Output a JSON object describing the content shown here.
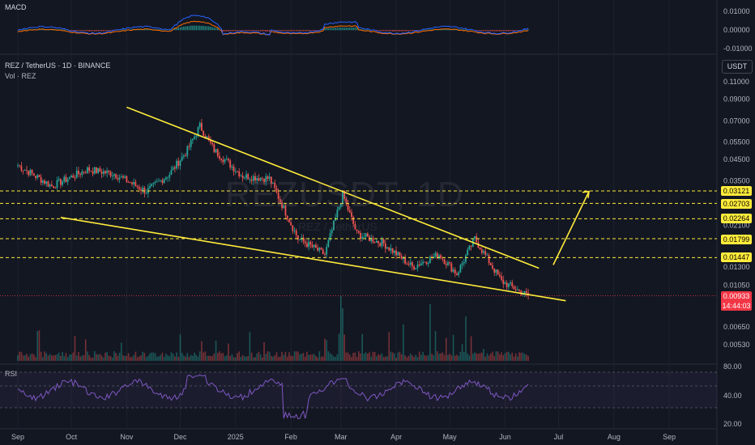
{
  "header": {
    "symbol": "REZ / TetherUS · 1D · BINANCE",
    "vol_label": "Vol · REZ",
    "currency": "USDT"
  },
  "indicators": {
    "macd_label": "MACD",
    "rsi_label": "RSI",
    "macd_axis": [
      "0.01000",
      "0.00000",
      "-0.01000"
    ],
    "rsi_axis": [
      "80.00",
      "40.00",
      "20.00"
    ]
  },
  "watermark": {
    "symbol": "REZUSDT, 1D",
    "name": "REZ / TetherUS"
  },
  "price_axis": [
    "0.11000",
    "0.09000",
    "0.07000",
    "0.05500",
    "0.04500",
    "0.03500",
    "0.02100",
    "0.01300",
    "0.01050",
    "0.00650",
    "0.00530"
  ],
  "level_tags": [
    "0.03121",
    "0.02703",
    "0.02264",
    "0.01799",
    "0.01447"
  ],
  "current_price": {
    "value": "0.00933",
    "countdown": "14:44:03"
  },
  "x_axis": [
    "Sep",
    "Oct",
    "Nov",
    "Dec",
    "2025",
    "Feb",
    "Mar",
    "Apr",
    "May",
    "Jun",
    "Jul",
    "Aug",
    "Sep"
  ],
  "colors": {
    "background": "#131722",
    "up": "#26a69a",
    "down": "#ef5350",
    "trendline": "#ffeb3b",
    "macd": "#2962ff",
    "signal": "#ff6d00",
    "rsi": "#7e57c2"
  },
  "chart_data": {
    "type": "candlestick",
    "title": "REZ / TetherUS · 1D · BINANCE",
    "y_scale": "log",
    "ylim": [
      0.008,
      0.13
    ],
    "x_range": [
      "2024-09-01",
      "2025-09-15"
    ],
    "key_points": [
      {
        "date": "2024-09-01",
        "close": 0.042
      },
      {
        "date": "2024-09-20",
        "close": 0.033
      },
      {
        "date": "2024-10-10",
        "close": 0.04
      },
      {
        "date": "2024-10-25",
        "close": 0.038
      },
      {
        "date": "2024-11-12",
        "close": 0.031
      },
      {
        "date": "2024-11-25",
        "close": 0.038
      },
      {
        "date": "2024-12-05",
        "close": 0.05
      },
      {
        "date": "2024-12-12",
        "close": 0.066
      },
      {
        "date": "2024-12-20",
        "close": 0.05
      },
      {
        "date": "2025-01-05",
        "close": 0.037
      },
      {
        "date": "2025-01-20",
        "close": 0.036
      },
      {
        "date": "2025-02-05",
        "close": 0.018
      },
      {
        "date": "2025-02-20",
        "close": 0.015
      },
      {
        "date": "2025-03-02",
        "close": 0.03
      },
      {
        "date": "2025-03-10",
        "close": 0.019
      },
      {
        "date": "2025-03-25",
        "close": 0.017
      },
      {
        "date": "2025-04-10",
        "close": 0.013
      },
      {
        "date": "2025-04-25",
        "close": 0.015
      },
      {
        "date": "2025-05-05",
        "close": 0.012
      },
      {
        "date": "2025-05-15",
        "close": 0.018
      },
      {
        "date": "2025-05-30",
        "close": 0.011
      },
      {
        "date": "2025-06-14",
        "close": 0.00933
      }
    ],
    "horizontal_levels": [
      0.03121,
      0.02703,
      0.02264,
      0.01799,
      0.01447
    ],
    "trendlines": [
      {
        "name": "upper",
        "from": {
          "date": "2024-11-01",
          "price": 0.082
        },
        "to": {
          "date": "2025-06-20",
          "price": 0.0128
        }
      },
      {
        "name": "lower",
        "from": {
          "date": "2024-09-25",
          "price": 0.023
        },
        "to": {
          "date": "2025-07-05",
          "price": 0.0088
        }
      },
      {
        "name": "projection",
        "from": {
          "date": "2025-06-28",
          "price": 0.0133
        },
        "to": {
          "date": "2025-07-18",
          "price": 0.031
        }
      }
    ]
  }
}
